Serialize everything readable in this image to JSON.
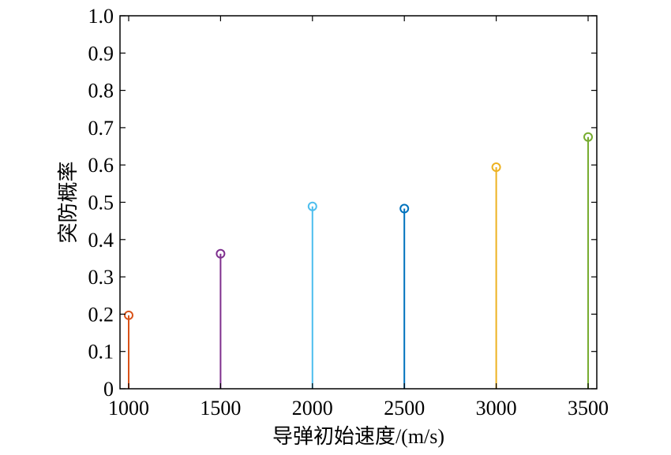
{
  "chart_data": {
    "type": "stem",
    "title": "",
    "xlabel": "导弹初始速度/(m/s)",
    "ylabel": "突防概率",
    "xlim": [
      1000,
      3500
    ],
    "ylim": [
      0,
      1.0
    ],
    "grid": false,
    "legend": "none",
    "x_ticks": [
      "1000",
      "1500",
      "2000",
      "2500",
      "3000",
      "3500"
    ],
    "y_ticks": [
      "0",
      "0.1",
      "0.2",
      "0.3",
      "0.4",
      "0.5",
      "0.6",
      "0.7",
      "0.8",
      "0.9",
      "1.0"
    ],
    "points": [
      {
        "x": 1000,
        "y": 0.197,
        "color": "#d95319"
      },
      {
        "x": 1500,
        "y": 0.362,
        "color": "#7e2f8e"
      },
      {
        "x": 2000,
        "y": 0.489,
        "color": "#4dbeee"
      },
      {
        "x": 2500,
        "y": 0.483,
        "color": "#0072bd"
      },
      {
        "x": 3000,
        "y": 0.594,
        "color": "#edb120"
      },
      {
        "x": 3500,
        "y": 0.675,
        "color": "#77ac30"
      }
    ]
  }
}
